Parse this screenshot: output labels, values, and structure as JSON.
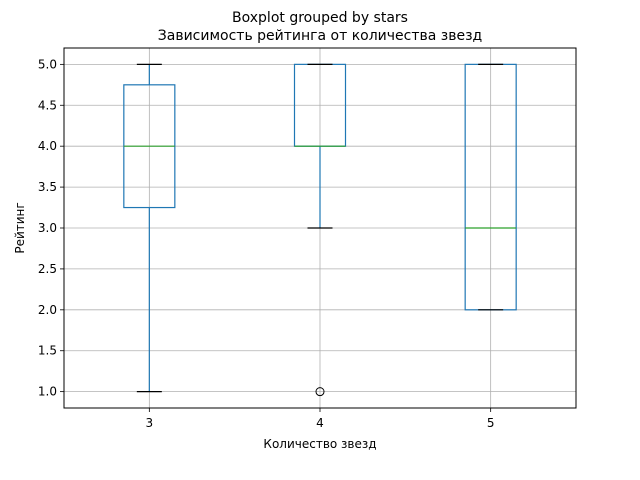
{
  "chart_data": {
    "type": "boxplot",
    "title": "Boxplot grouped by stars",
    "subtitle": "Зависимость рейтинга от количества звезд",
    "xlabel": "Количество звезд",
    "ylabel": "Рейтинг",
    "ylim": [
      0.8,
      5.2
    ],
    "yticks": [
      1.0,
      1.5,
      2.0,
      2.5,
      3.0,
      3.5,
      4.0,
      4.5,
      5.0
    ],
    "ytick_labels": [
      "1.0",
      "1.5",
      "2.0",
      "2.5",
      "3.0",
      "3.5",
      "4.0",
      "4.5",
      "5.0"
    ],
    "grid": true,
    "categories": [
      "3",
      "4",
      "5"
    ],
    "boxes": [
      {
        "category": "3",
        "whisker_low": 1.0,
        "q1": 3.25,
        "median": 4.0,
        "q3": 4.75,
        "whisker_high": 5.0,
        "outliers": []
      },
      {
        "category": "4",
        "whisker_low": 3.0,
        "q1": 4.0,
        "median": 4.0,
        "q3": 5.0,
        "whisker_high": 5.0,
        "outliers": [
          1.0
        ]
      },
      {
        "category": "5",
        "whisker_low": 2.0,
        "q1": 2.0,
        "median": 3.0,
        "q3": 5.0,
        "whisker_high": 5.0,
        "outliers": []
      }
    ],
    "colors": {
      "box": "#1f77b4",
      "median": "#2ca02c",
      "whisker_cap": "#000000",
      "grid": "#b0b0b0"
    }
  }
}
